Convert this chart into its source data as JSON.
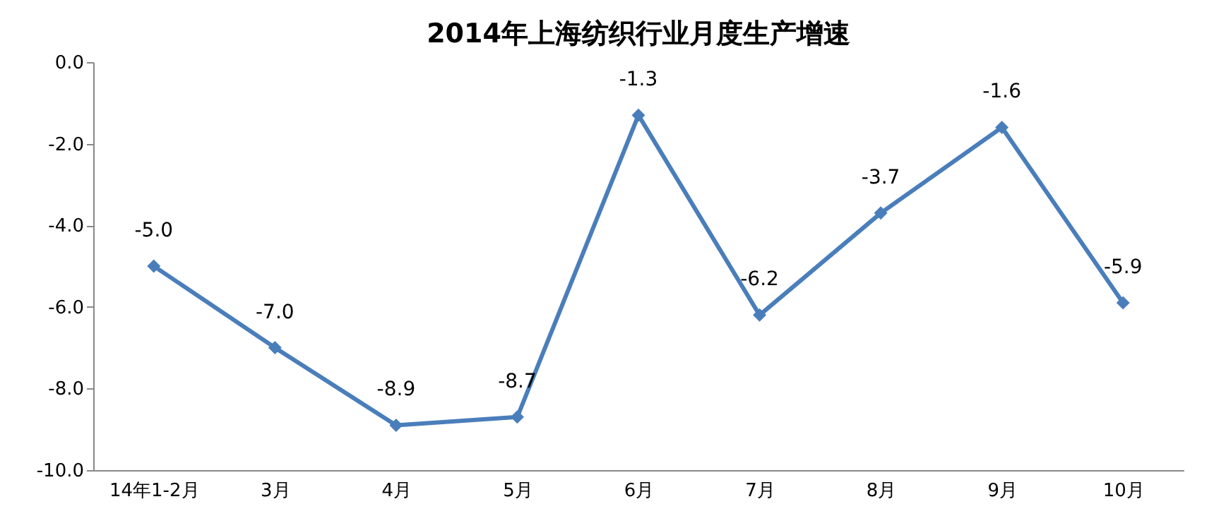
{
  "chart_data": {
    "type": "line",
    "title": "2014年上海纺织行业月度生产增速",
    "categories": [
      "14年1-2月",
      "3月",
      "4月",
      "5月",
      "6月",
      "7月",
      "8月",
      "9月",
      "10月"
    ],
    "series": [
      {
        "color": "#4a7ebb",
        "values": [
          -5.0,
          -7.0,
          -8.9,
          -8.7,
          -1.3,
          -6.2,
          -3.7,
          -1.6,
          -5.9
        ],
        "value_labels": [
          "-5.0",
          "-7.0",
          "-8.9",
          "-8.7",
          "-1.3",
          "-6.2",
          "-3.7",
          "-1.6",
          "-5.9"
        ]
      }
    ],
    "ylim": [
      -10,
      0
    ],
    "yticks": [
      {
        "value": 0,
        "label": "0.0"
      },
      {
        "value": -2,
        "label": "-2.0"
      },
      {
        "value": -4,
        "label": "-4.0"
      },
      {
        "value": -6,
        "label": "-6.0"
      },
      {
        "value": -8,
        "label": "-8.0"
      },
      {
        "value": -10,
        "label": "-10.0"
      }
    ],
    "marker": "diamond",
    "line_style": "solid",
    "grid": false
  }
}
